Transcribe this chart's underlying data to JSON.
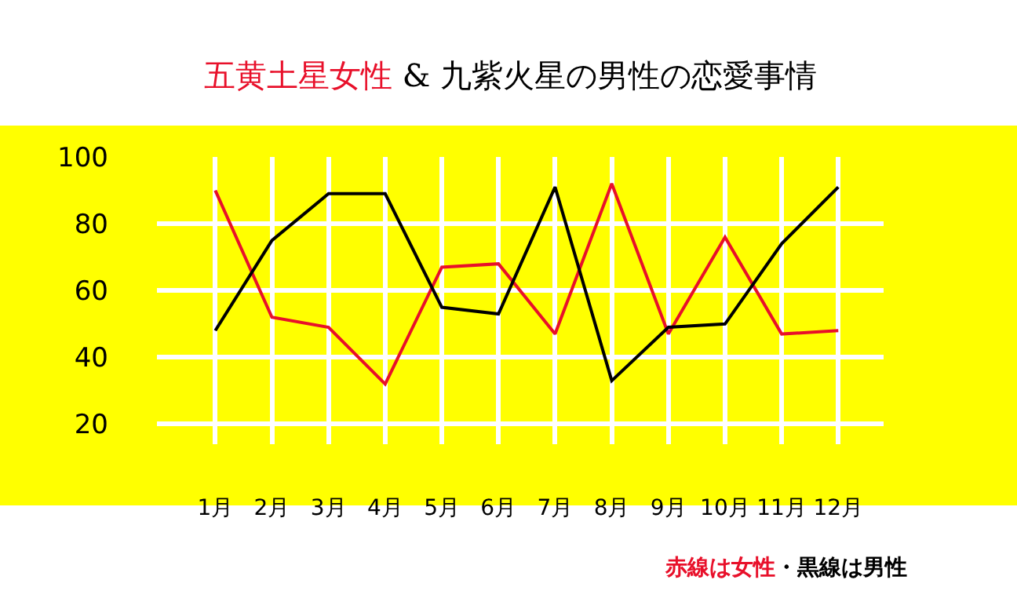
{
  "chart_data": {
    "type": "line",
    "title": "五黄土星女性",
    "subtitle": "& 九紫火星の男性の恋愛事情",
    "categories": [
      "1月",
      "2月",
      "3月",
      "4月",
      "5月",
      "6月",
      "7月",
      "8月",
      "9月",
      "10月",
      "11月",
      "12月"
    ],
    "series": [
      {
        "color": "#e8102a",
        "values": [
          90,
          52,
          49,
          32,
          67,
          68,
          47,
          92,
          47,
          76,
          47,
          48
        ]
      },
      {
        "color": "#000000",
        "values": [
          48,
          75,
          89,
          89,
          55,
          53,
          91,
          33,
          49,
          50,
          74,
          91
        ]
      }
    ],
    "ylim": [
      14,
      100
    ],
    "yticks": [
      20,
      40,
      60,
      80,
      100
    ],
    "grid": true,
    "marker": "none",
    "line_style": "solid",
    "annotations": [
      "赤線は女性",
      "・黒線は男性"
    ]
  }
}
